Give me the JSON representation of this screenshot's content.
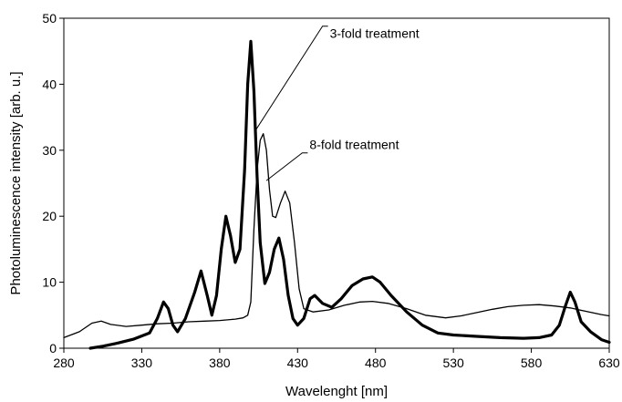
{
  "chart_data": {
    "type": "line",
    "xlabel": "Wavelenght [nm]",
    "ylabel": "Photoluminescence intensity [arb. u.]",
    "xlim": [
      280,
      630
    ],
    "ylim": [
      0,
      50
    ],
    "xticks": [
      280,
      330,
      380,
      430,
      480,
      530,
      580,
      630
    ],
    "yticks": [
      0,
      10,
      20,
      30,
      40,
      50
    ],
    "grid": false,
    "legend": "none",
    "annotations": [
      {
        "text": "3-fold treatment",
        "series": "3-fold treatment"
      },
      {
        "text": "8-fold treatment",
        "series": "8-fold treatment"
      }
    ],
    "series": [
      {
        "name": "3-fold treatment",
        "color": "#000000",
        "style": "thick",
        "points": [
          [
            297,
            0.0
          ],
          [
            305,
            0.3
          ],
          [
            315,
            0.8
          ],
          [
            325,
            1.4
          ],
          [
            335,
            2.3
          ],
          [
            340,
            4.5
          ],
          [
            344,
            7.0
          ],
          [
            347,
            6.0
          ],
          [
            350,
            3.5
          ],
          [
            353,
            2.5
          ],
          [
            358,
            4.5
          ],
          [
            364,
            8.5
          ],
          [
            368,
            11.7
          ],
          [
            372,
            8.0
          ],
          [
            375,
            5.0
          ],
          [
            378,
            8.0
          ],
          [
            381,
            15.0
          ],
          [
            384,
            20.0
          ],
          [
            387,
            17.0
          ],
          [
            390,
            13.0
          ],
          [
            393,
            15.0
          ],
          [
            396,
            27.0
          ],
          [
            398,
            40.0
          ],
          [
            400,
            46.5
          ],
          [
            402,
            39.0
          ],
          [
            404,
            26.0
          ],
          [
            406,
            16.0
          ],
          [
            409,
            9.8
          ],
          [
            412,
            11.5
          ],
          [
            415,
            15.0
          ],
          [
            418,
            16.7
          ],
          [
            421,
            13.5
          ],
          [
            424,
            8.0
          ],
          [
            427,
            4.5
          ],
          [
            430,
            3.5
          ],
          [
            434,
            4.5
          ],
          [
            438,
            7.5
          ],
          [
            441,
            8.0
          ],
          [
            446,
            6.8
          ],
          [
            452,
            6.2
          ],
          [
            458,
            7.5
          ],
          [
            465,
            9.5
          ],
          [
            472,
            10.5
          ],
          [
            478,
            10.8
          ],
          [
            483,
            10.0
          ],
          [
            490,
            8.0
          ],
          [
            500,
            5.5
          ],
          [
            510,
            3.5
          ],
          [
            520,
            2.3
          ],
          [
            530,
            2.0
          ],
          [
            545,
            1.8
          ],
          [
            560,
            1.6
          ],
          [
            575,
            1.5
          ],
          [
            585,
            1.6
          ],
          [
            593,
            2.0
          ],
          [
            598,
            3.5
          ],
          [
            602,
            6.5
          ],
          [
            605,
            8.5
          ],
          [
            608,
            7.0
          ],
          [
            612,
            4.0
          ],
          [
            618,
            2.5
          ],
          [
            625,
            1.3
          ],
          [
            630,
            0.9
          ]
        ]
      },
      {
        "name": "8-fold treatment",
        "color": "#000000",
        "style": "thin",
        "points": [
          [
            280,
            1.6
          ],
          [
            290,
            2.5
          ],
          [
            298,
            3.8
          ],
          [
            304,
            4.1
          ],
          [
            310,
            3.6
          ],
          [
            320,
            3.3
          ],
          [
            330,
            3.5
          ],
          [
            340,
            3.7
          ],
          [
            350,
            3.8
          ],
          [
            360,
            4.0
          ],
          [
            370,
            4.1
          ],
          [
            380,
            4.2
          ],
          [
            390,
            4.4
          ],
          [
            395,
            4.6
          ],
          [
            398,
            5.0
          ],
          [
            400,
            7.0
          ],
          [
            402,
            18.0
          ],
          [
            404,
            27.0
          ],
          [
            406,
            31.5
          ],
          [
            408,
            32.5
          ],
          [
            410,
            30.0
          ],
          [
            412,
            24.0
          ],
          [
            414,
            20.0
          ],
          [
            416,
            19.8
          ],
          [
            419,
            22.0
          ],
          [
            422,
            23.8
          ],
          [
            425,
            22.0
          ],
          [
            428,
            16.0
          ],
          [
            431,
            9.0
          ],
          [
            434,
            6.0
          ],
          [
            440,
            5.5
          ],
          [
            450,
            5.8
          ],
          [
            460,
            6.5
          ],
          [
            470,
            7.0
          ],
          [
            478,
            7.1
          ],
          [
            488,
            6.8
          ],
          [
            500,
            6.0
          ],
          [
            512,
            5.0
          ],
          [
            525,
            4.6
          ],
          [
            535,
            4.9
          ],
          [
            545,
            5.4
          ],
          [
            555,
            5.9
          ],
          [
            565,
            6.3
          ],
          [
            575,
            6.5
          ],
          [
            585,
            6.6
          ],
          [
            595,
            6.4
          ],
          [
            605,
            6.1
          ],
          [
            615,
            5.6
          ],
          [
            625,
            5.1
          ],
          [
            630,
            4.9
          ]
        ]
      }
    ]
  }
}
